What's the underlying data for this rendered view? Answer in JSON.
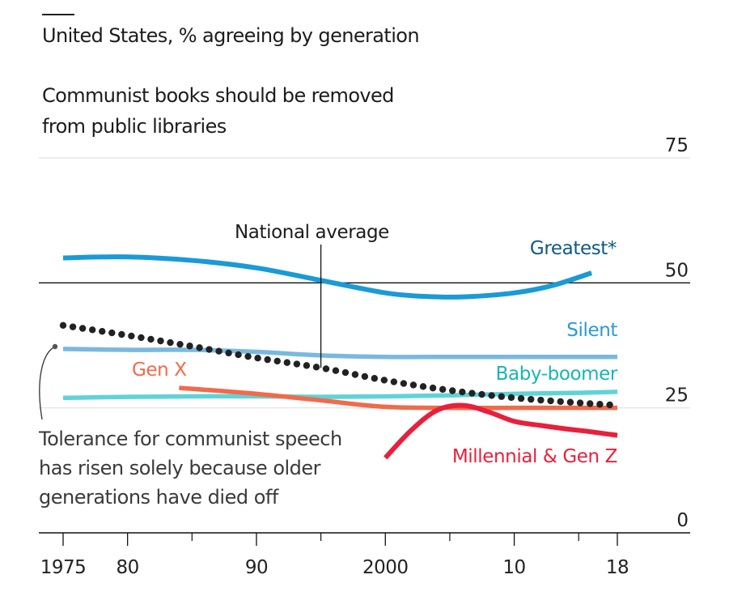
{
  "header": {
    "subtitle": "United States, % agreeing by generation",
    "title": "Communist books should be removed from public libraries"
  },
  "annotation": "Tolerance for communist speech has risen solely because older generations have died off",
  "chart_data": {
    "type": "line",
    "title": "Communist books should be removed from public libraries",
    "subtitle": "United States, % agreeing by generation",
    "xlabel": "",
    "ylabel": "",
    "xlim": [
      1975,
      2018
    ],
    "ylim": [
      0,
      75
    ],
    "yticks": [
      0,
      25,
      50,
      75
    ],
    "ytick_labels": [
      "0",
      "25",
      "50",
      "75"
    ],
    "xticks_major": [
      1975,
      1980,
      1990,
      2000,
      2010,
      2018
    ],
    "xtick_labels": [
      "1975",
      "80",
      "90",
      "2000",
      "10",
      "18"
    ],
    "xticks_minor": [
      1985,
      1995,
      2005,
      2015
    ],
    "grid": true,
    "highlight_gridline": 50,
    "series": [
      {
        "name": "Greatest*",
        "color": "#1a9ad6",
        "label_color": "#0e5a86",
        "style": "solid",
        "x": [
          1975,
          1980,
          1985,
          1990,
          1995,
          2000,
          2003,
          2006,
          2010,
          2013,
          2016
        ],
        "y": [
          55,
          55.2,
          54.5,
          53,
          50.5,
          48,
          47.3,
          47.2,
          48,
          49.5,
          52
        ]
      },
      {
        "name": "Silent",
        "color": "#7ab8e0",
        "label_color": "#2a9ad6",
        "style": "solid",
        "x": [
          1975,
          1980,
          1985,
          1990,
          1995,
          2000,
          2005,
          2010,
          2015,
          2018
        ],
        "y": [
          36.8,
          36.6,
          36.6,
          36.2,
          35.5,
          35.2,
          35.2,
          35.2,
          35.2,
          35.2
        ]
      },
      {
        "name": "Baby-boomer",
        "color": "#5fd3d8",
        "label_color": "#17b5b5",
        "style": "solid",
        "x": [
          1975,
          1980,
          1985,
          1990,
          1995,
          2000,
          2005,
          2010,
          2015,
          2018
        ],
        "y": [
          27,
          27.2,
          27.3,
          27.3,
          27.2,
          27.3,
          27.5,
          27.8,
          28,
          28.2
        ]
      },
      {
        "name": "Gen X",
        "color": "#f26a4a",
        "label_color": "#f26a4a",
        "style": "solid",
        "x": [
          1984,
          1990,
          1995,
          2000,
          2005,
          2010,
          2015,
          2018
        ],
        "y": [
          29,
          27.8,
          26.5,
          25.2,
          25,
          25,
          25,
          25
        ]
      },
      {
        "name": "National average",
        "color": "#222222",
        "label_color": "#1c1c1c",
        "style": "dotted",
        "x": [
          1975,
          1980,
          1985,
          1990,
          1995,
          2000,
          2005,
          2010,
          2015,
          2018
        ],
        "y": [
          41.5,
          39.5,
          37.3,
          35,
          33,
          30.5,
          28.5,
          27,
          26,
          25.5
        ]
      },
      {
        "name": "Millennial & Gen Z",
        "color": "#e8203c",
        "label_color": "#e8203c",
        "style": "solid",
        "x": [
          2000,
          2002,
          2004,
          2006,
          2008,
          2010,
          2012,
          2014,
          2016,
          2018
        ],
        "y": [
          15,
          20.5,
          24.5,
          25.5,
          24.2,
          22.3,
          21.5,
          20.8,
          20.2,
          19.5
        ]
      }
    ],
    "annotations": [
      {
        "text": "National average",
        "pointer_year": 1995
      },
      {
        "text": "Tolerance for communist speech has risen solely because older generations have died off"
      }
    ]
  }
}
